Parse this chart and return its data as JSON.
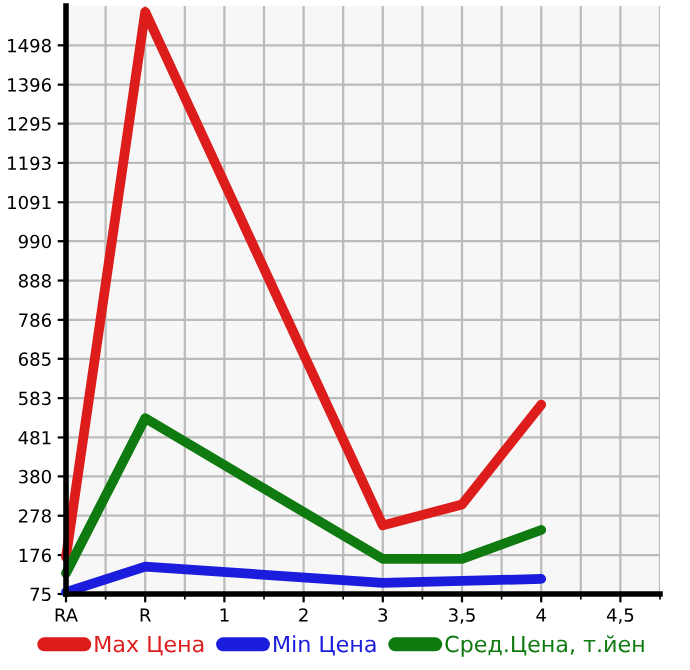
{
  "chart_data": {
    "type": "line",
    "categories": [
      "RA",
      "R",
      "1",
      "2",
      "3",
      "3,5",
      "4",
      "4,5"
    ],
    "ylim": [
      75,
      1600
    ],
    "yticks": [
      75,
      176,
      278,
      380,
      481,
      583,
      685,
      786,
      888,
      990,
      1091,
      1193,
      1295,
      1396,
      1498
    ],
    "grid": true,
    "legend": "bottom",
    "marker": "none",
    "line_style": "solid",
    "series": [
      {
        "name": "Max Цена",
        "color": "#dd1c1c",
        "values": [
          171,
          1585,
          null,
          null,
          253,
          307,
          566,
          null
        ]
      },
      {
        "name": "Min Цена",
        "color": "#1c1cdd",
        "values": [
          80,
          146,
          null,
          null,
          104,
          109,
          114,
          null
        ]
      },
      {
        "name": "Сред.Цена, т.йен",
        "color": "#0f7a0f",
        "values": [
          129,
          531,
          null,
          null,
          166,
          166,
          241,
          null
        ]
      }
    ]
  }
}
